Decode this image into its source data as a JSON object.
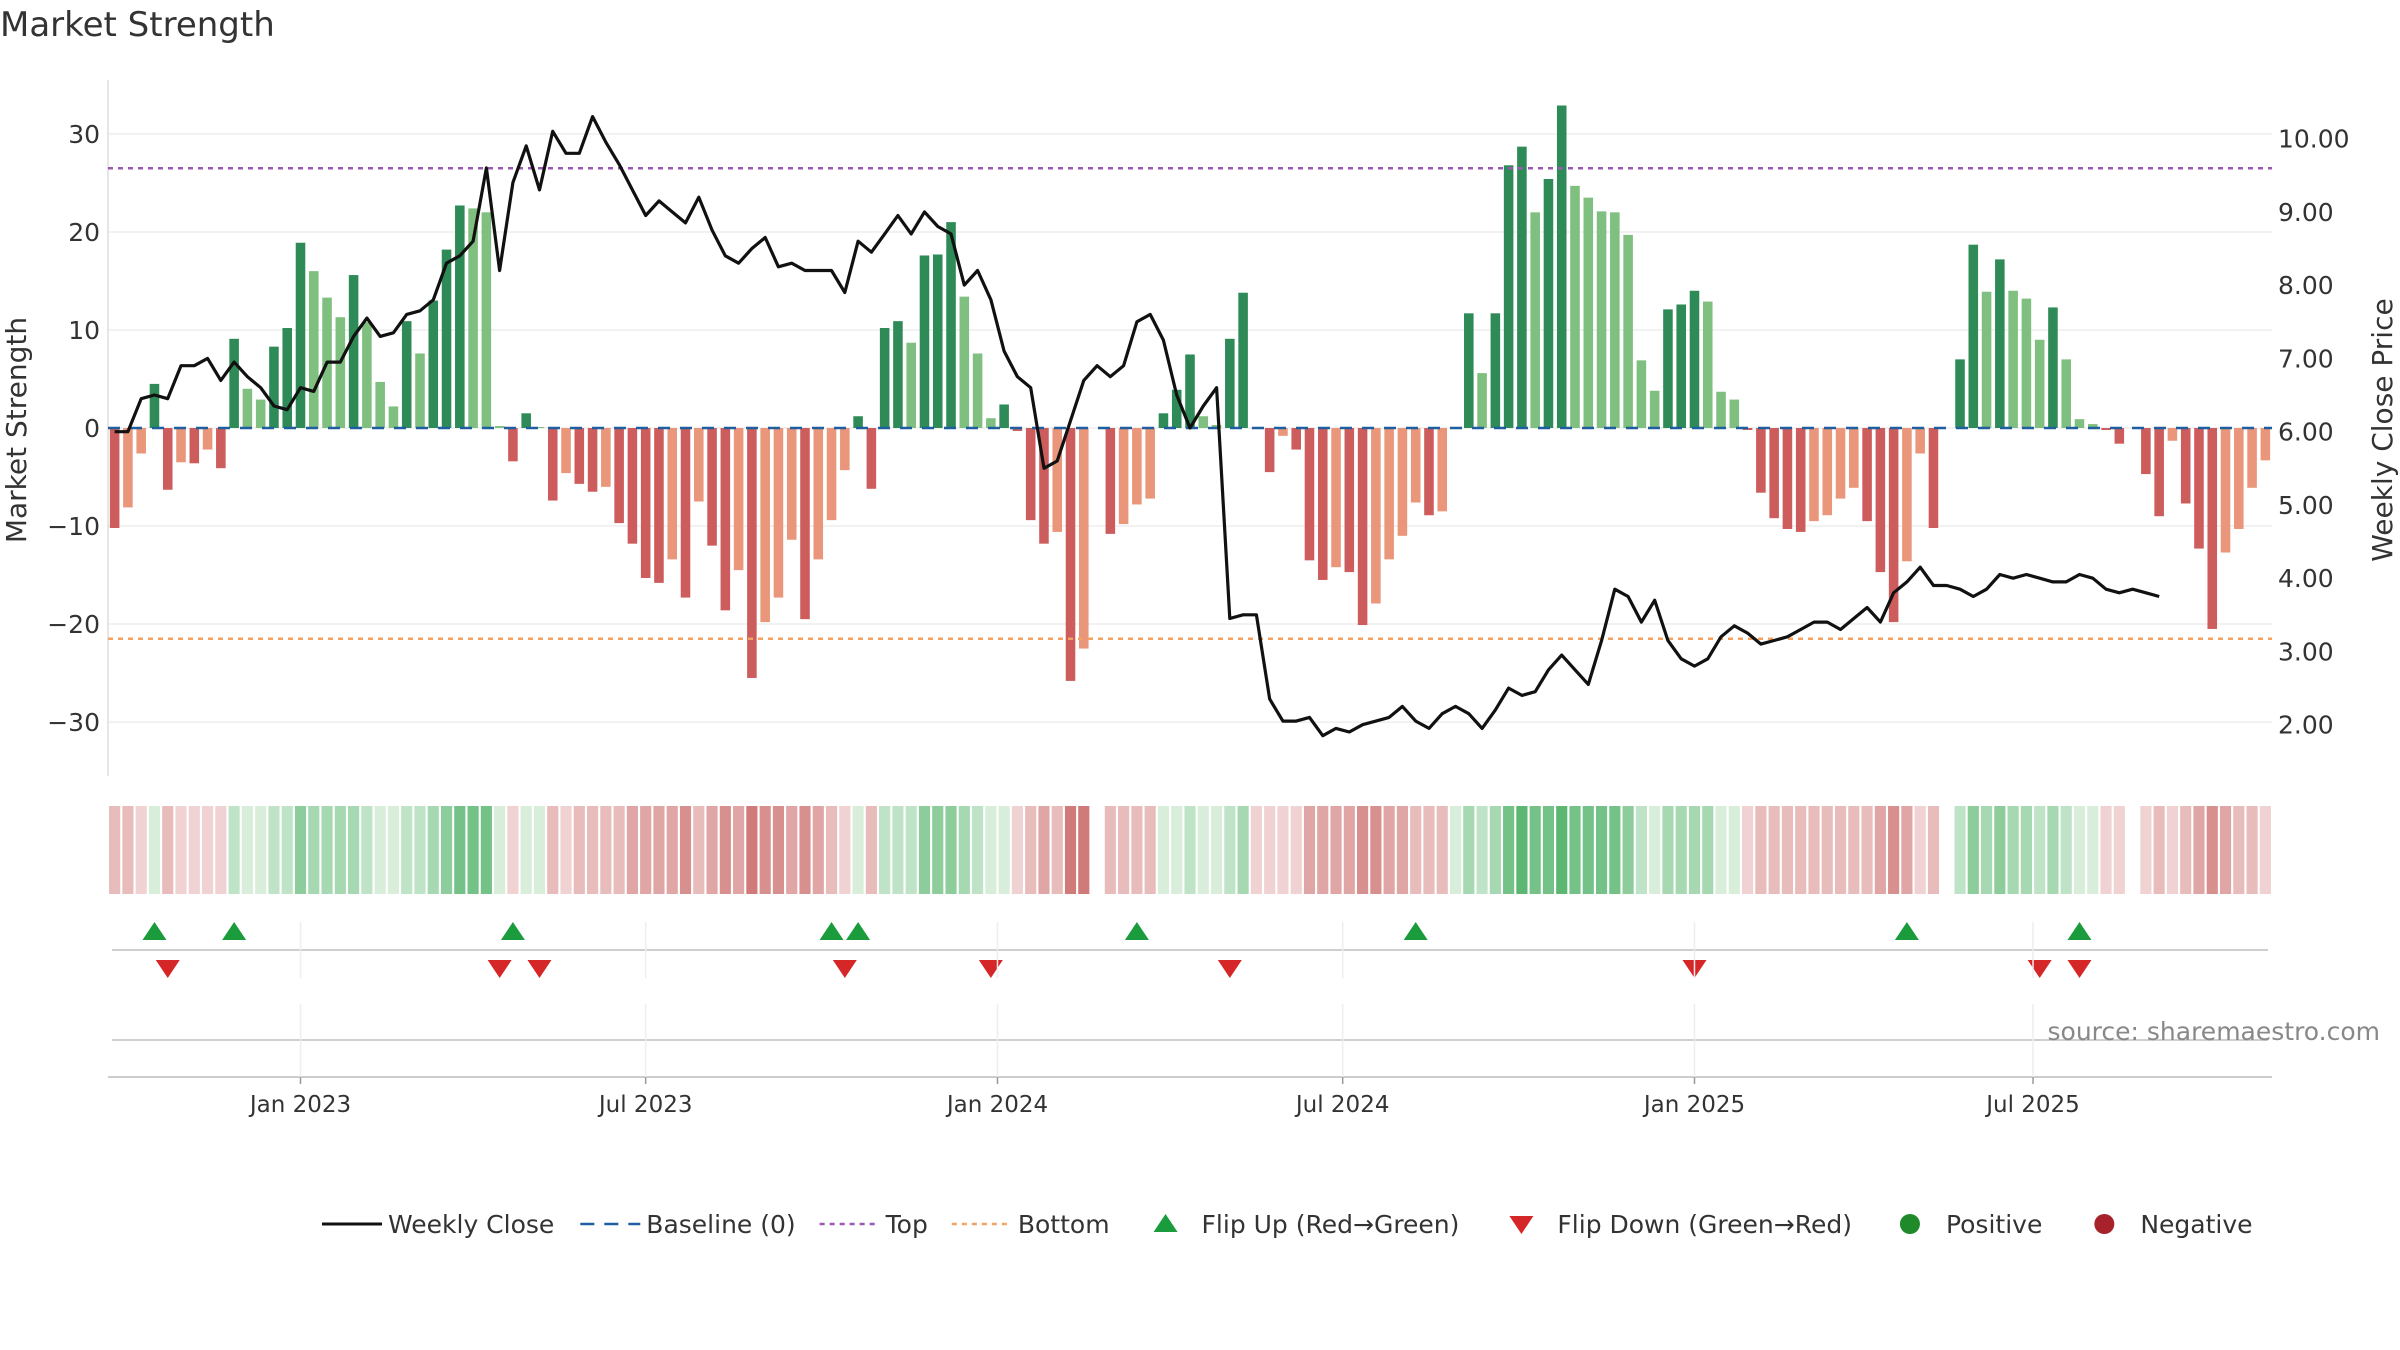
{
  "chart_data": {
    "type": "bar",
    "title": "Market Strength",
    "ylabel_left": "Market Strength",
    "ylabel_right": "Weekly Close Price",
    "source": "source: sharemaestro.com",
    "ylim_left": [
      -35.5,
      35.5
    ],
    "ylim_right": [
      1.3,
      10.8
    ],
    "yticks_left": [
      "30",
      "20",
      "10",
      "0",
      "−10",
      "−20",
      "−30"
    ],
    "yticks_left_values": [
      30,
      20,
      10,
      0,
      -10,
      -20,
      -30
    ],
    "yticks_right": [
      "10.00",
      "9.00",
      "8.00",
      "7.00",
      "6.00",
      "5.00",
      "4.00",
      "3.00",
      "2.00"
    ],
    "yticks_right_values": [
      10,
      9,
      8,
      7,
      6,
      5,
      4,
      3,
      2
    ],
    "xticks": [
      "Jan 2023",
      "Jul 2023",
      "Jan 2024",
      "Jul 2024",
      "Jan 2025",
      "Jul 2025"
    ],
    "xticks_week_index": [
      14,
      40,
      66.5,
      92.5,
      119,
      144.5
    ],
    "top_line": 26.5,
    "bottom_line": -21.5,
    "baseline": 0,
    "strength": [
      -10.2,
      -8.1,
      -2.6,
      4.5,
      -6.3,
      -3.5,
      -3.6,
      -2.2,
      -4.1,
      9.1,
      4.0,
      2.9,
      8.3,
      10.2,
      18.9,
      16.0,
      13.3,
      11.3,
      15.6,
      10.8,
      4.7,
      2.2,
      10.9,
      7.6,
      13.0,
      18.2,
      22.7,
      22.4,
      22.0,
      0.2,
      -3.4,
      1.5,
      0.1,
      -7.4,
      -4.6,
      -5.7,
      -6.5,
      -6.0,
      -9.7,
      -11.8,
      -15.3,
      -15.8,
      -13.4,
      -17.3,
      -7.5,
      -12.0,
      -18.6,
      -14.5,
      -25.5,
      -19.8,
      -17.3,
      -11.4,
      -19.5,
      -13.4,
      -9.4,
      -4.3,
      1.2,
      -6.2,
      10.2,
      10.9,
      8.7,
      17.6,
      17.7,
      21.0,
      13.4,
      7.6,
      1.0,
      2.4,
      -0.3,
      -9.4,
      -11.8,
      -10.6,
      -25.8,
      -22.5,
      0,
      -10.8,
      -9.8,
      -7.8,
      -7.2,
      1.5,
      3.9,
      7.5,
      1.2,
      0.3,
      9.1,
      13.8,
      -0.1,
      -4.5,
      -0.8,
      -2.2,
      -13.5,
      -15.5,
      -14.2,
      -14.7,
      -20.1,
      -17.9,
      -13.4,
      -11.0,
      -7.6,
      -8.9,
      -8.5,
      0.1,
      11.7,
      5.6,
      11.7,
      26.8,
      28.7,
      22.0,
      25.4,
      32.9,
      24.7,
      23.5,
      22.1,
      22.0,
      19.7,
      6.9,
      3.8,
      12.1,
      12.6,
      14.0,
      12.9,
      3.7,
      2.9,
      -0.2,
      -6.6,
      -9.2,
      -10.3,
      -10.6,
      -9.5,
      -8.9,
      -7.2,
      -6.1,
      -9.5,
      -14.7,
      -19.8,
      -13.6,
      -2.6,
      -10.2,
      0.0,
      7.0,
      18.7,
      13.9,
      17.2,
      14.0,
      13.2,
      9.0,
      12.3,
      7.0,
      0.9,
      0.4,
      -0.2,
      -1.6,
      0.0,
      -4.7,
      -9.0,
      -1.3,
      -7.7,
      -12.3,
      -20.5,
      -12.7,
      -10.3,
      -6.1,
      -3.3
    ],
    "close": [
      6.0,
      6.0,
      6.45,
      6.5,
      6.45,
      6.9,
      6.9,
      7.0,
      6.7,
      6.95,
      6.75,
      6.6,
      6.35,
      6.3,
      6.6,
      6.55,
      6.95,
      6.95,
      7.3,
      7.55,
      7.3,
      7.35,
      7.6,
      7.65,
      7.8,
      8.3,
      8.4,
      8.6,
      9.6,
      8.2,
      9.4,
      9.9,
      9.3,
      10.1,
      9.8,
      9.8,
      10.3,
      9.95,
      9.65,
      9.3,
      8.95,
      9.15,
      9.0,
      8.85,
      9.2,
      8.75,
      8.4,
      8.3,
      8.5,
      8.65,
      8.25,
      8.3,
      8.2,
      8.2,
      8.2,
      7.9,
      8.6,
      8.45,
      8.7,
      8.95,
      8.7,
      9.0,
      8.8,
      8.7,
      8.0,
      8.2,
      7.8,
      7.1,
      6.75,
      6.6,
      5.5,
      5.6,
      6.15,
      6.7,
      6.9,
      6.75,
      6.9,
      7.5,
      7.6,
      7.25,
      6.5,
      6.05,
      6.35,
      6.6,
      3.45,
      3.5,
      3.5,
      2.35,
      2.05,
      2.05,
      2.1,
      1.85,
      1.95,
      1.9,
      2.0,
      2.05,
      2.1,
      2.25,
      2.05,
      1.95,
      2.15,
      2.25,
      2.15,
      1.95,
      2.2,
      2.5,
      2.4,
      2.45,
      2.75,
      2.95,
      2.75,
      2.55,
      3.15,
      3.85,
      3.75,
      3.4,
      3.7,
      3.15,
      2.9,
      2.8,
      2.9,
      3.2,
      3.35,
      3.25,
      3.1,
      3.15,
      3.2,
      3.3,
      3.4,
      3.4,
      3.3,
      3.45,
      3.6,
      3.4,
      3.8,
      3.95,
      4.15,
      3.9,
      3.9,
      3.85,
      3.75,
      3.85,
      4.05,
      4.0,
      4.05,
      4.0,
      3.95,
      3.95,
      4.05,
      4.0,
      3.85,
      3.8,
      3.85,
      3.8,
      3.75
    ]
  },
  "strip": {
    "positive_colors": [
      "#d8eedb",
      "#bfe3c6",
      "#a6d8b1",
      "#8dcd9c",
      "#74c287",
      "#5bb772"
    ],
    "negative_colors": [
      "#efd2d1",
      "#e8bcbb",
      "#e0a6a5",
      "#d8908f",
      "#d07a79",
      "#c86463"
    ]
  },
  "flips": {
    "up": [
      3,
      9,
      30,
      54,
      56,
      77,
      98,
      135,
      148
    ],
    "down": [
      4,
      29,
      32,
      55,
      66,
      84,
      119,
      145,
      148
    ]
  },
  "colors": {
    "strong_green": "#2e8b57",
    "light_green": "#7fbf7f",
    "strong_red": "#cd5c5c",
    "light_red": "#e9967a",
    "price_line": "#111111",
    "top_line": "#9b59b6",
    "bottom_line": "#f4a261",
    "baseline": "#1f5fa0",
    "flip_up": "#1a9c3c",
    "flip_down": "#d62728",
    "positive_dot": "#1f8a2a",
    "negative_dot": "#a8222b"
  },
  "legend": [
    {
      "label": "Weekly Close",
      "kind": "line"
    },
    {
      "label": "Baseline (0)",
      "kind": "dash"
    },
    {
      "label": "Top",
      "kind": "dot-purple"
    },
    {
      "label": "Bottom",
      "kind": "dot-orange"
    },
    {
      "label": "Flip Up (Red→Green)",
      "kind": "tri-up"
    },
    {
      "label": "Flip Down (Green→Red)",
      "kind": "tri-down"
    },
    {
      "label": "Positive",
      "kind": "circle-green"
    },
    {
      "label": "Negative",
      "kind": "circle-red"
    }
  ]
}
